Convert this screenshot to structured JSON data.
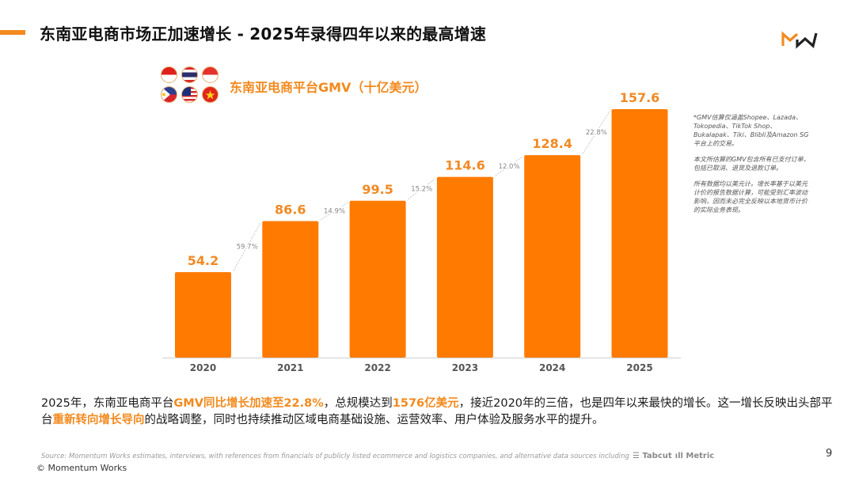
{
  "header": {
    "title": "东南亚电商市场正加速增长 - 2025年录得四年以来的最高增速",
    "logo": "Momentum Works logo"
  },
  "flags": [
    "indonesia-flag",
    "thailand-flag",
    "singapore-flag",
    "philippines-flag",
    "malaysia-flag",
    "vietnam-flag"
  ],
  "colors": {
    "accent": "#f28a1e",
    "bar": "#ff7a00",
    "growth_line": "#c8c8c8",
    "axis_text": "#555555"
  },
  "chart_data": {
    "type": "bar",
    "title": "东南亚电商平台GMV（十亿美元）",
    "xlabel": "",
    "ylabel": "",
    "categories": [
      "2020",
      "2021",
      "2022",
      "2023",
      "2024",
      "2025"
    ],
    "values": [
      54.2,
      86.6,
      99.5,
      114.6,
      128.4,
      157.6
    ],
    "value_labels": [
      "54.2",
      "86.6",
      "99.5",
      "114.6",
      "128.4",
      "157.6"
    ],
    "growth_rates": [
      "59.7%",
      "14.9%",
      "15.2%",
      "12.0%",
      "22.8%"
    ],
    "ylim": [
      0,
      160
    ],
    "grid": false,
    "legend": "none"
  },
  "notes": [
    "*GMV估算仅涵盖Shopee、Lazada、Tokopedia、TikTok Shop、Bukalapak、Tiki、Blibli及Amazon SG平台上的交易。",
    "本文所估算的GMV包含所有已支付订单，包括已取消、退货及退款订单。",
    "所有数据均以美元计。增长率基于以美元计价的报告数据计算，可能受到汇率波动影响，因而未必完全反映以本地货币计价的实际业务表现。"
  ],
  "summary": {
    "p1": "2025年，东南亚电商平台",
    "h1": "GMV同比增长加速至22.8%",
    "p2": "，总规模达到",
    "h2": "1576亿美元",
    "p3": "，接近2020年的三倍，也是四年以来最快的增长。这一增长反映出头部平台",
    "h3": "重新转向增长导向",
    "p4": "的战略调整，同时也持续推动区域电商基础设施、运营效率、用户体验及服务水平的提升。"
  },
  "footer": {
    "source": "Source: Momentum Works estimates, interviews, with references from financials of publicly listed ecommerce and logistics companies,  and alternative data sources including",
    "brand1": "☰ Tabcut",
    "brand2": "ıll Metric",
    "copyright": "© Momentum Works",
    "page_number": "9"
  }
}
